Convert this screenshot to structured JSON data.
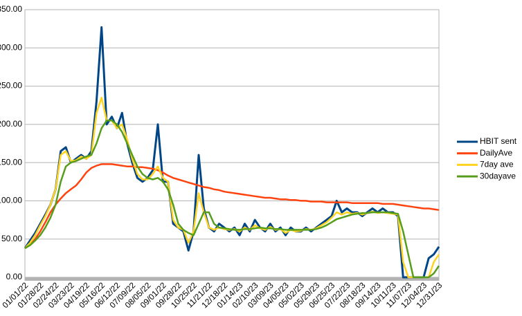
{
  "chart_data": {
    "type": "line",
    "x": [
      0,
      9,
      18,
      27,
      36,
      45,
      54,
      63,
      72,
      81,
      90,
      99,
      108,
      117,
      126,
      135,
      144,
      153,
      162,
      171,
      180,
      189,
      198,
      207,
      216,
      225,
      234,
      243,
      252,
      261,
      270,
      279,
      288,
      297,
      306,
      315,
      324,
      333,
      342,
      351,
      360,
      369,
      378,
      387,
      396,
      405,
      414,
      423,
      432,
      441,
      450,
      459,
      468,
      477,
      486,
      495,
      504,
      513,
      522,
      531,
      540,
      549,
      558,
      567,
      576,
      585,
      594,
      603,
      612,
      621,
      630,
      639,
      648,
      657,
      666,
      675,
      684,
      693,
      702,
      711,
      720,
      729
    ],
    "series": [
      {
        "name": "HBIT sent",
        "color": "#004586",
        "values": [
          38,
          48,
          58,
          70,
          82,
          95,
          115,
          165,
          170,
          150,
          155,
          160,
          155,
          165,
          230,
          327,
          200,
          210,
          195,
          215,
          175,
          150,
          130,
          125,
          130,
          140,
          200,
          125,
          125,
          70,
          65,
          60,
          35,
          60,
          160,
          90,
          65,
          60,
          70,
          65,
          60,
          65,
          55,
          70,
          60,
          75,
          65,
          60,
          70,
          60,
          65,
          55,
          65,
          60,
          60,
          65,
          60,
          65,
          70,
          75,
          80,
          100,
          85,
          90,
          85,
          85,
          80,
          85,
          90,
          85,
          90,
          85,
          85,
          80,
          0,
          0,
          0,
          0,
          0,
          25,
          30,
          40
        ]
      },
      {
        "name": "DailyAve",
        "color": "#ff420e",
        "values": [
          38,
          42,
          50,
          60,
          72,
          85,
          95,
          103,
          110,
          115,
          120,
          128,
          137,
          143,
          146,
          148,
          148,
          148,
          147,
          146,
          145,
          145,
          144,
          144,
          143,
          142,
          140,
          137,
          133,
          130,
          128,
          126,
          124,
          122,
          120,
          118,
          117,
          115,
          114,
          112,
          111,
          110,
          109,
          108,
          107,
          106,
          105,
          104,
          104,
          103,
          102,
          102,
          101,
          101,
          100,
          100,
          99,
          99,
          99,
          98,
          98,
          98,
          98,
          98,
          97,
          97,
          97,
          97,
          97,
          97,
          96,
          96,
          96,
          95,
          94,
          93,
          92,
          91,
          90,
          90,
          89,
          88
        ]
      },
      {
        "name": "7day ave",
        "color": "#ffd320",
        "values": [
          38,
          45,
          55,
          68,
          80,
          95,
          115,
          160,
          165,
          152,
          153,
          158,
          155,
          160,
          215,
          235,
          205,
          205,
          195,
          200,
          180,
          155,
          135,
          128,
          128,
          135,
          145,
          130,
          125,
          75,
          65,
          62,
          45,
          60,
          110,
          85,
          65,
          62,
          65,
          63,
          62,
          63,
          60,
          65,
          62,
          68,
          64,
          62,
          66,
          62,
          63,
          58,
          62,
          60,
          61,
          63,
          62,
          64,
          68,
          72,
          78,
          85,
          82,
          85,
          83,
          84,
          82,
          84,
          86,
          84,
          85,
          84,
          83,
          82,
          20,
          0,
          0,
          0,
          0,
          0,
          20,
          30
        ]
      },
      {
        "name": "30dayave",
        "color": "#579d1c",
        "values": [
          38,
          42,
          48,
          55,
          65,
          78,
          95,
          125,
          145,
          150,
          152,
          155,
          158,
          160,
          175,
          195,
          205,
          205,
          200,
          190,
          175,
          160,
          145,
          135,
          130,
          128,
          130,
          125,
          115,
          95,
          70,
          62,
          58,
          55,
          70,
          85,
          85,
          70,
          65,
          64,
          63,
          62,
          62,
          63,
          63,
          64,
          65,
          64,
          64,
          63,
          63,
          62,
          62,
          62,
          62,
          62,
          62,
          63,
          65,
          68,
          72,
          76,
          78,
          80,
          82,
          83,
          84,
          84,
          85,
          85,
          85,
          85,
          84,
          83,
          60,
          30,
          0,
          0,
          0,
          0,
          5,
          15
        ]
      }
    ],
    "xlim": [
      0,
      729
    ],
    "xticks": [
      {
        "value": 0,
        "label": "01/01/22"
      },
      {
        "value": 27,
        "label": "01/28/22"
      },
      {
        "value": 54,
        "label": "02/24/22"
      },
      {
        "value": 81,
        "label": "03/23/22"
      },
      {
        "value": 108,
        "label": "04/19/22"
      },
      {
        "value": 135,
        "label": "05/16/22"
      },
      {
        "value": 162,
        "label": "06/12/22"
      },
      {
        "value": 189,
        "label": "07/09/22"
      },
      {
        "value": 216,
        "label": "08/05/22"
      },
      {
        "value": 243,
        "label": "09/01/22"
      },
      {
        "value": 270,
        "label": "09/28/22"
      },
      {
        "value": 297,
        "label": "10/25/22"
      },
      {
        "value": 324,
        "label": "11/21/22"
      },
      {
        "value": 351,
        "label": "12/18/22"
      },
      {
        "value": 378,
        "label": "01/14/23"
      },
      {
        "value": 405,
        "label": "02/10/23"
      },
      {
        "value": 432,
        "label": "03/09/23"
      },
      {
        "value": 459,
        "label": "04/05/23"
      },
      {
        "value": 486,
        "label": "05/02/23"
      },
      {
        "value": 513,
        "label": "05/29/23"
      },
      {
        "value": 540,
        "label": "06/25/23"
      },
      {
        "value": 567,
        "label": "07/22/23"
      },
      {
        "value": 594,
        "label": "08/18/23"
      },
      {
        "value": 621,
        "label": "09/14/23"
      },
      {
        "value": 648,
        "label": "10/11/23"
      },
      {
        "value": 675,
        "label": "11/07/23"
      },
      {
        "value": 702,
        "label": "12/04/23"
      },
      {
        "value": 729,
        "label": "12/31/23"
      }
    ],
    "ylim": [
      0,
      350
    ],
    "yticks": [
      {
        "value": 0,
        "label": "0.00"
      },
      {
        "value": 50,
        "label": "50.00"
      },
      {
        "value": 100,
        "label": "100.00"
      },
      {
        "value": 150,
        "label": "150.00"
      },
      {
        "value": 200,
        "label": "200.00"
      },
      {
        "value": 250,
        "label": "250.00"
      },
      {
        "value": 300,
        "label": "300.00"
      },
      {
        "value": 350,
        "label": "350.00"
      }
    ],
    "grid": true,
    "legend": "right"
  }
}
